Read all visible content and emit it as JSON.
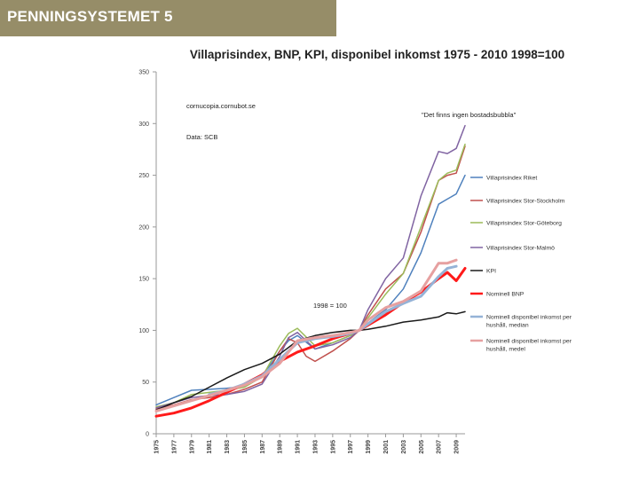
{
  "slide": {
    "header_title": "PENNINGSYSTEMET 5",
    "header_color": "#968d68"
  },
  "chart_data": {
    "type": "line",
    "title": "Villaprisindex, BNP, KPI, disponibel inkomst 1975 - 2010 1998=100",
    "xlabel": "",
    "ylabel": "",
    "ylim": [
      0,
      350
    ],
    "yticks": [
      0,
      50,
      100,
      150,
      200,
      250,
      300,
      350
    ],
    "xlim": [
      1975,
      2010
    ],
    "xticks": [
      "1975",
      "1977",
      "1979",
      "1981",
      "1983",
      "1985",
      "1987",
      "1989",
      "1991",
      "1993",
      "1995",
      "1997",
      "1999",
      "2001",
      "2003",
      "2005",
      "2007",
      "2009"
    ],
    "grid": false,
    "legend_position": "right",
    "annotations": {
      "source_site": "cornucopia.cornubot.se",
      "source_data": "Data: SCB",
      "quote": "\"Det finns ingen bostadsbubbla\"",
      "base_label": "1998 = 100"
    },
    "series": [
      {
        "name": "Villaprisindex Riket",
        "color": "#4f81bd",
        "width": 1.5,
        "x": [
          1975,
          1977,
          1979,
          1981,
          1983,
          1985,
          1987,
          1989,
          1990,
          1991,
          1993,
          1995,
          1997,
          1998,
          1999,
          2001,
          2003,
          2005,
          2007,
          2008,
          2009,
          2010
        ],
        "values": [
          28,
          35,
          42,
          43,
          44,
          46,
          55,
          80,
          90,
          95,
          82,
          88,
          95,
          100,
          107,
          120,
          140,
          175,
          222,
          227,
          232,
          250
        ]
      },
      {
        "name": "Villaprisindex Stor-Stockholm",
        "color": "#c0504d",
        "width": 1.5,
        "x": [
          1975,
          1977,
          1979,
          1981,
          1983,
          1985,
          1987,
          1989,
          1990,
          1991,
          1992,
          1993,
          1995,
          1997,
          1998,
          1999,
          2001,
          2003,
          2005,
          2007,
          2008,
          2009,
          2010
        ],
        "values": [
          24,
          28,
          33,
          35,
          38,
          43,
          50,
          80,
          92,
          88,
          75,
          70,
          80,
          92,
          100,
          115,
          140,
          155,
          195,
          245,
          250,
          252,
          278
        ]
      },
      {
        "name": "Villaprisindex Stor-Göteborg",
        "color": "#9bbb59",
        "width": 1.5,
        "x": [
          1975,
          1977,
          1979,
          1981,
          1983,
          1985,
          1987,
          1989,
          1990,
          1991,
          1993,
          1995,
          1997,
          1998,
          1999,
          2001,
          2003,
          2005,
          2007,
          2008,
          2009,
          2010
        ],
        "values": [
          26,
          30,
          38,
          40,
          42,
          45,
          55,
          85,
          97,
          102,
          85,
          88,
          95,
          100,
          112,
          135,
          155,
          200,
          245,
          252,
          255,
          280
        ]
      },
      {
        "name": "Villaprisindex Stor-Malmö",
        "color": "#8064a2",
        "width": 1.5,
        "x": [
          1975,
          1977,
          1979,
          1981,
          1983,
          1985,
          1987,
          1989,
          1990,
          1991,
          1993,
          1995,
          1997,
          1998,
          1999,
          2001,
          2003,
          2005,
          2007,
          2008,
          2009,
          2010
        ],
        "values": [
          25,
          30,
          35,
          37,
          38,
          41,
          48,
          75,
          93,
          98,
          82,
          86,
          93,
          100,
          120,
          150,
          170,
          230,
          273,
          271,
          276,
          298
        ]
      },
      {
        "name": "KPI",
        "color": "#1a1a1a",
        "width": 1.5,
        "x": [
          1975,
          1977,
          1979,
          1981,
          1983,
          1985,
          1987,
          1989,
          1991,
          1993,
          1995,
          1997,
          1998,
          1999,
          2001,
          2003,
          2005,
          2007,
          2008,
          2009,
          2010
        ],
        "values": [
          23,
          30,
          36,
          45,
          54,
          62,
          68,
          77,
          90,
          95,
          98,
          100,
          100,
          101,
          104,
          108,
          110,
          113,
          117,
          116,
          118
        ]
      },
      {
        "name": "Nominell BNP",
        "color": "#ff1a1a",
        "width": 3,
        "x": [
          1975,
          1977,
          1979,
          1981,
          1983,
          1985,
          1987,
          1989,
          1991,
          1993,
          1995,
          1997,
          1998,
          1999,
          2001,
          2003,
          2005,
          2007,
          2008,
          2009,
          2010
        ],
        "values": [
          17,
          20,
          25,
          32,
          40,
          48,
          57,
          70,
          79,
          85,
          92,
          97,
          100,
          105,
          115,
          127,
          137,
          150,
          156,
          148,
          160
        ]
      },
      {
        "name": "Nominell disponibel inkomst per hushåll, median",
        "color": "#95b3d7",
        "width": 3,
        "x": [
          1981,
          1983,
          1985,
          1987,
          1989,
          1991,
          1993,
          1995,
          1997,
          1998,
          1999,
          2001,
          2003,
          2005,
          2007,
          2008,
          2009
        ],
        "values": [
          38,
          42,
          48,
          56,
          72,
          88,
          92,
          94,
          97,
          100,
          106,
          118,
          126,
          133,
          152,
          160,
          162
        ]
      },
      {
        "name": "Nominell disponibel inkomst per hushåll, medel",
        "color": "#e6a0a0",
        "width": 3,
        "x": [
          1975,
          1977,
          1979,
          1981,
          1983,
          1985,
          1987,
          1989,
          1991,
          1993,
          1995,
          1997,
          1998,
          1999,
          2001,
          2003,
          2005,
          2007,
          2008,
          2009
        ],
        "values": [
          22,
          27,
          32,
          37,
          42,
          47,
          55,
          68,
          90,
          93,
          95,
          98,
          100,
          110,
          122,
          128,
          138,
          165,
          165,
          168
        ]
      }
    ]
  }
}
